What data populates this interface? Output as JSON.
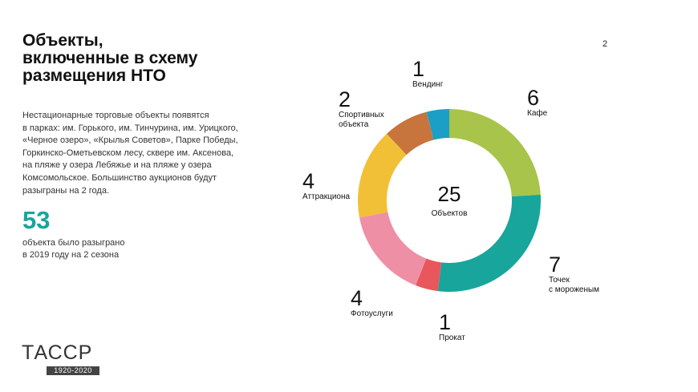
{
  "page_number": "2",
  "title_lines": [
    "Объекты,",
    "включенные в схему",
    "размещения НТО"
  ],
  "description_lines": [
    "Нестационарные торговые объекты появятся",
    "в парках: им. Горького, им. Тинчурина, им. Урицкого,",
    "«Черное озеро», «Крылья Советов», Парке Победы,",
    "Горкинско-Ометьевском лесу, сквере им. Аксенова,",
    "на пляже у озера Лебяжье и на пляже у озера",
    "Комсомольское. Большинство аукционов будут",
    "разыграны на 2 года."
  ],
  "highlight": {
    "value": "53",
    "caption_lines": [
      "объекта было разыграно",
      "в 2019 году на 2 сезона"
    ]
  },
  "chart_data": {
    "type": "pie",
    "donut": true,
    "center_value": "25",
    "center_label": "Объектов",
    "slices": [
      {
        "label": "Кафе",
        "value": 6,
        "color": "#a8c44a",
        "label_lines": [
          "Кафе"
        ]
      },
      {
        "label": "Точек с мороженым",
        "value": 7,
        "color": "#17a59c",
        "label_lines": [
          "Точек",
          "с мороженым"
        ]
      },
      {
        "label": "Прокат",
        "value": 1,
        "color": "#e8575b",
        "label_lines": [
          "Прокат"
        ]
      },
      {
        "label": "Фотоуслуги",
        "value": 4,
        "color": "#ef8fa6",
        "label_lines": [
          "Фотоуслуги"
        ]
      },
      {
        "label": "Аттракциона",
        "value": 4,
        "color": "#f1c036",
        "label_lines": [
          "Аттракциона"
        ]
      },
      {
        "label": "Спортивных объекта",
        "value": 2,
        "color": "#c8743d",
        "label_lines": [
          "Спортивных",
          "объекта"
        ]
      },
      {
        "label": "Вендинг",
        "value": 1,
        "color": "#1b9fc6",
        "label_lines": [
          "Вендинг"
        ]
      }
    ]
  },
  "logo": {
    "text": "ТАССР",
    "years": "1920-2020"
  }
}
